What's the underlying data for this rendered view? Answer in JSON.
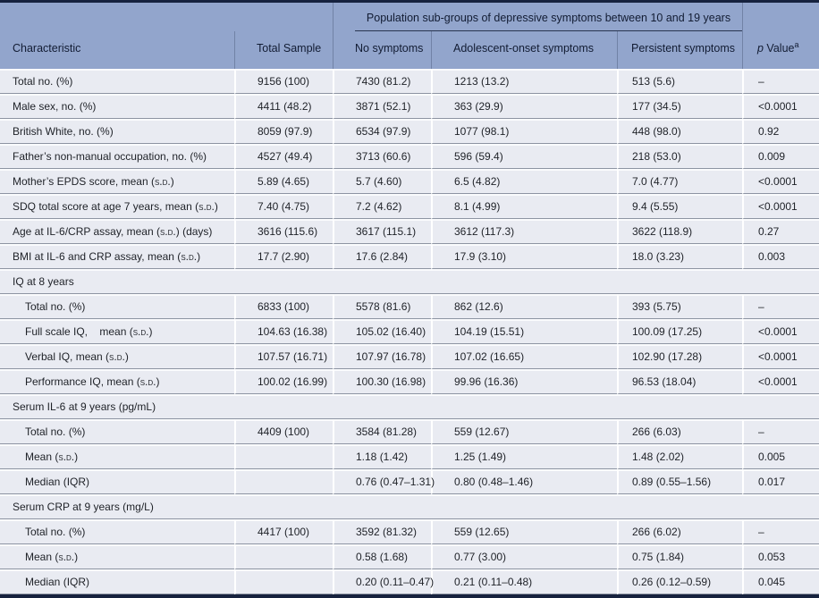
{
  "table": {
    "group_header": "Population sub-groups of depressive symptoms between 10 and 19 years",
    "columns": [
      "Characteristic",
      "Total Sample",
      "No symptoms",
      "Adolescent-onset symptoms",
      "Persistent symptoms"
    ],
    "p_column": {
      "prefix_italic": "p",
      "rest": " Value",
      "superscript": "a"
    },
    "rows": [
      {
        "type": "data",
        "indent": false,
        "label": "Total no. (%)",
        "values": [
          "9156 (100)",
          "7430 (81.2)",
          "1213 (13.2)",
          "513 (5.6)",
          "–"
        ]
      },
      {
        "type": "data",
        "indent": false,
        "label": "Male sex, no. (%)",
        "values": [
          "4411 (48.2)",
          "3871 (52.1)",
          "363 (29.9)",
          "177 (34.5)",
          "<0.0001"
        ]
      },
      {
        "type": "data",
        "indent": false,
        "label": "British White, no. (%)",
        "values": [
          "8059 (97.9)",
          "6534 (97.9)",
          "1077 (98.1)",
          "448 (98.0)",
          "0.92"
        ]
      },
      {
        "type": "data",
        "indent": false,
        "label": "Father’s non-manual occupation, no. (%)",
        "values": [
          "4527 (49.4)",
          "3713 (60.6)",
          "596 (59.4)",
          "218 (53.0)",
          "0.009"
        ]
      },
      {
        "type": "data",
        "indent": false,
        "label": "Mother’s EPDS score, mean (s.d.)",
        "values": [
          "5.89 (4.65)",
          "5.7 (4.60)",
          "6.5 (4.82)",
          "7.0 (4.77)",
          "<0.0001"
        ]
      },
      {
        "type": "data",
        "indent": false,
        "label": "SDQ total score at age 7 years, mean (s.d.)",
        "values": [
          "7.40 (4.75)",
          "7.2 (4.62)",
          "8.1 (4.99)",
          "9.4 (5.55)",
          "<0.0001"
        ]
      },
      {
        "type": "data",
        "indent": false,
        "label": "Age at IL-6/CRP assay, mean (s.d.) (days)",
        "values": [
          "3616 (115.6)",
          "3617 (115.1)",
          "3612 (117.3)",
          "3622 (118.9)",
          "0.27"
        ]
      },
      {
        "type": "data",
        "indent": false,
        "label": "BMI at IL-6 and CRP assay, mean (s.d.)",
        "values": [
          "17.7 (2.90)",
          "17.6 (2.84)",
          "17.9 (3.10)",
          "18.0 (3.23)",
          "0.003"
        ]
      },
      {
        "type": "section",
        "label": "IQ at 8 years"
      },
      {
        "type": "data",
        "indent": true,
        "label": "Total no. (%)",
        "values": [
          "6833 (100)",
          "5578 (81.6)",
          "862 (12.6)",
          "393 (5.75)",
          "–"
        ]
      },
      {
        "type": "data",
        "indent": true,
        "label": "Full scale IQ,    mean (s.d.)",
        "values": [
          "104.63 (16.38)",
          "105.02 (16.40)",
          "104.19 (15.51)",
          "100.09 (17.25)",
          "<0.0001"
        ]
      },
      {
        "type": "data",
        "indent": true,
        "label": "Verbal IQ, mean (s.d.)",
        "values": [
          "107.57 (16.71)",
          "107.97 (16.78)",
          "107.02 (16.65)",
          "102.90 (17.28)",
          "<0.0001"
        ]
      },
      {
        "type": "data",
        "indent": true,
        "label": "Performance IQ, mean (s.d.)",
        "values": [
          "100.02 (16.99)",
          "100.30 (16.98)",
          "99.96 (16.36)",
          "96.53 (18.04)",
          "<0.0001"
        ]
      },
      {
        "type": "section",
        "label": "Serum IL-6 at 9 years (pg/mL)"
      },
      {
        "type": "data",
        "indent": true,
        "label": "Total no. (%)",
        "values": [
          "4409 (100)",
          "3584 (81.28)",
          "559 (12.67)",
          "266 (6.03)",
          "–"
        ]
      },
      {
        "type": "data",
        "indent": true,
        "label": "Mean (s.d.)",
        "values": [
          "",
          "1.18 (1.42)",
          "1.25 (1.49)",
          "1.48 (2.02)",
          "0.005"
        ]
      },
      {
        "type": "data",
        "indent": true,
        "label": "Median (IQR)",
        "values": [
          "",
          "0.76 (0.47–1.31)",
          "0.80 (0.48–1.46)",
          "0.89 (0.55–1.56)",
          "0.017"
        ]
      },
      {
        "type": "section",
        "label": "Serum CRP at 9 years (mg/L)"
      },
      {
        "type": "data",
        "indent": true,
        "label": "Total no. (%)",
        "values": [
          "4417 (100)",
          "3592 (81.32)",
          "559 (12.65)",
          "266 (6.02)",
          "–"
        ]
      },
      {
        "type": "data",
        "indent": true,
        "label": "Mean (s.d.)",
        "values": [
          "",
          "0.58 (1.68)",
          "0.77 (3.00)",
          "0.75 (1.84)",
          "0.053"
        ]
      },
      {
        "type": "data",
        "indent": true,
        "label": "Median (IQR)",
        "values": [
          "",
          "0.20 (0.11–0.47)",
          "0.21 (0.11–0.48)",
          "0.26 (0.12–0.59)",
          "0.045"
        ]
      }
    ]
  },
  "colors": {
    "header_bg": "#92a5cc",
    "row_bg": "#e9ebf2",
    "border_dark": "#16223e",
    "row_separator": "#8d94a2",
    "group_rule": "#2a3550"
  }
}
